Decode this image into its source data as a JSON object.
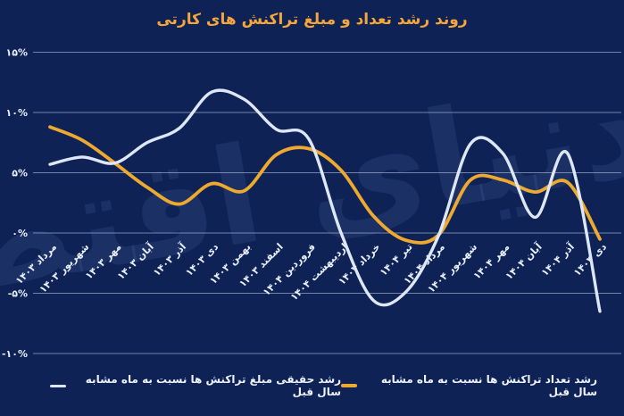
{
  "title": "روند رشد تعداد و مبلغ تراکنش های کارتی",
  "watermark": "دنیای اقتصاد",
  "colors": {
    "background": "#0E2256",
    "title": "#F5A63B",
    "amount_line": "#DEE7F8",
    "count_line": "#EEA92F",
    "grid": "#C9D6EC",
    "axis_label": "#E9EFFA"
  },
  "chart_data": {
    "type": "line",
    "title": "روند رشد تعداد و مبلغ تراکنش های کارتی",
    "categories": [
      "مرداد ۱۴۰۳",
      "شهریور ۱۴۰۳",
      "مهر ۱۴۰۳",
      "آبان ۱۴۰۳",
      "آذر ۱۴۰۳",
      "دی ۱۴۰۳",
      "بهمن ۱۴۰۳",
      "اسفند ۱۴۰۳",
      "فروردین ۱۴۰۴",
      "اردیبهشت ۱۴۰۴",
      "خرداد ۱۴۰۴",
      "تیر ۱۴۰۴",
      "مرداد ۱۴۰۴",
      "شهریور ۱۴۰۴",
      "مهر ۱۴۰۴",
      "آبان ۱۴۰۴",
      "آذر ۱۴۰۴",
      "دی ۱۴۰۴"
    ],
    "series": [
      {
        "name": "رشد حقیقی مبلغ تراکنش ها نسبت به ماه مشابه سال قبل",
        "color": "#DEE7F8",
        "values": [
          5.7,
          6.3,
          5.8,
          7.5,
          8.7,
          11.7,
          11.1,
          8.6,
          7.8,
          0.0,
          -5.6,
          -4.9,
          -0.3,
          7.4,
          6.6,
          1.3,
          6.6,
          -6.5
        ]
      },
      {
        "name": "رشد تعداد تراکنش ها نسبت به ماه مشابه سال قبل",
        "color": "#EEA92F",
        "values": [
          8.8,
          7.7,
          5.8,
          3.8,
          2.4,
          4.1,
          3.5,
          6.5,
          7.0,
          5.2,
          1.4,
          -0.6,
          -0.2,
          4.4,
          4.4,
          3.4,
          4.2,
          -0.5
        ]
      }
    ],
    "y_ticks": {
      "values": [
        15,
        10,
        5,
        0,
        -5,
        -10
      ],
      "labels": [
        "۱۵%",
        "۱۰%",
        "۵%",
        "۰%",
        "-۵%",
        "-۱۰%"
      ]
    },
    "ylim": [
      -12.5,
      16
    ],
    "unit": "%",
    "grid": "horizontal",
    "legend_position": "bottom",
    "x_label_rotation": -45
  },
  "legend": {
    "amount_label": "رشد حقیقی مبلغ تراکنش ها نسبت به ماه مشابه سال قبل",
    "count_label": "رشد تعداد تراکنش ها نسبت به ماه مشابه سال قبل"
  }
}
